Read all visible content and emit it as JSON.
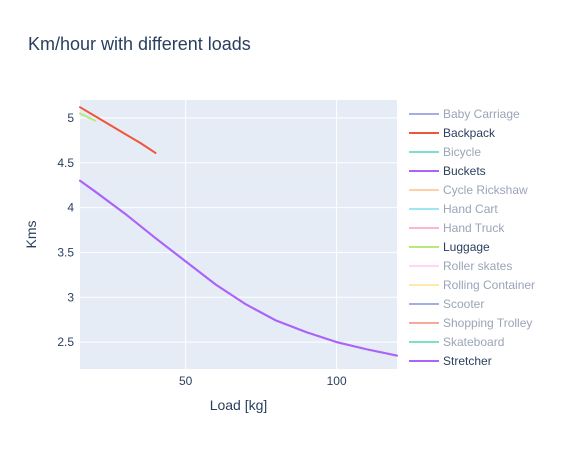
{
  "chart_data": {
    "type": "line",
    "title": "Km/hour with different loads",
    "xlabel": "Load [kg]",
    "ylabel": "Kms",
    "xlim": [
      15,
      120
    ],
    "ylim": [
      2.2,
      5.2
    ],
    "x_ticks": [
      50,
      100
    ],
    "y_ticks": [
      2.5,
      3,
      3.5,
      4,
      4.5,
      5
    ],
    "x_tick_labels": [
      "50",
      "100"
    ],
    "y_tick_labels": [
      "2.5",
      "3",
      "3.5",
      "4",
      "4.5",
      "5"
    ],
    "grid": true,
    "legend_position": "right",
    "series": [
      {
        "name": "Baby Carriage",
        "color": "#a4ade8",
        "visible": false,
        "x": [],
        "y": []
      },
      {
        "name": "Backpack",
        "color": "#ef553b",
        "visible": true,
        "x": [
          15,
          20,
          25,
          30,
          35,
          40
        ],
        "y": [
          5.12,
          5.02,
          4.92,
          4.82,
          4.72,
          4.61
        ]
      },
      {
        "name": "Bicycle",
        "color": "#7fe0c8",
        "visible": false,
        "x": [],
        "y": []
      },
      {
        "name": "Buckets",
        "color": "#ab63fa",
        "visible": true,
        "x": [
          15,
          20,
          30,
          40,
          50,
          60,
          70,
          80,
          90,
          100,
          110,
          120
        ],
        "y": [
          4.3,
          4.18,
          3.93,
          3.66,
          3.4,
          3.14,
          2.92,
          2.74,
          2.61,
          2.5,
          2.42,
          2.35
        ]
      },
      {
        "name": "Cycle Rickshaw",
        "color": "#ffcfa8",
        "visible": false,
        "x": [],
        "y": []
      },
      {
        "name": "Hand Cart",
        "color": "#9ce6f5",
        "visible": false,
        "x": [],
        "y": []
      },
      {
        "name": "Hand Truck",
        "color": "#ffb5d0",
        "visible": false,
        "x": [],
        "y": []
      },
      {
        "name": "Luggage",
        "color": "#b6e880",
        "visible": true,
        "x": [
          15,
          20
        ],
        "y": [
          5.05,
          4.97
        ]
      },
      {
        "name": "Roller skates",
        "color": "#ffd6f5",
        "visible": false,
        "x": [],
        "y": []
      },
      {
        "name": "Rolling Container",
        "color": "#fee9a8",
        "visible": false,
        "x": [],
        "y": []
      },
      {
        "name": "Scooter",
        "color": "#a4ade8",
        "visible": false,
        "x": [],
        "y": []
      },
      {
        "name": "Shopping Trolley",
        "color": "#f5a99d",
        "visible": false,
        "x": [],
        "y": []
      },
      {
        "name": "Skateboard",
        "color": "#7fe0c8",
        "visible": false,
        "x": [],
        "y": []
      },
      {
        "name": "Stretcher",
        "color": "#ab63fa",
        "visible": true,
        "x": [
          15,
          20,
          30,
          40,
          50,
          60,
          70,
          80,
          90,
          100,
          110,
          120
        ],
        "y": [
          4.3,
          4.18,
          3.93,
          3.66,
          3.4,
          3.14,
          2.92,
          2.74,
          2.61,
          2.5,
          2.42,
          2.35
        ]
      }
    ],
    "colors": {
      "plot_bg": "#e5ecf6",
      "grid": "#ffffff",
      "text": "#2a3f5f",
      "legend_hidden_text": "#9aa5b8"
    }
  }
}
